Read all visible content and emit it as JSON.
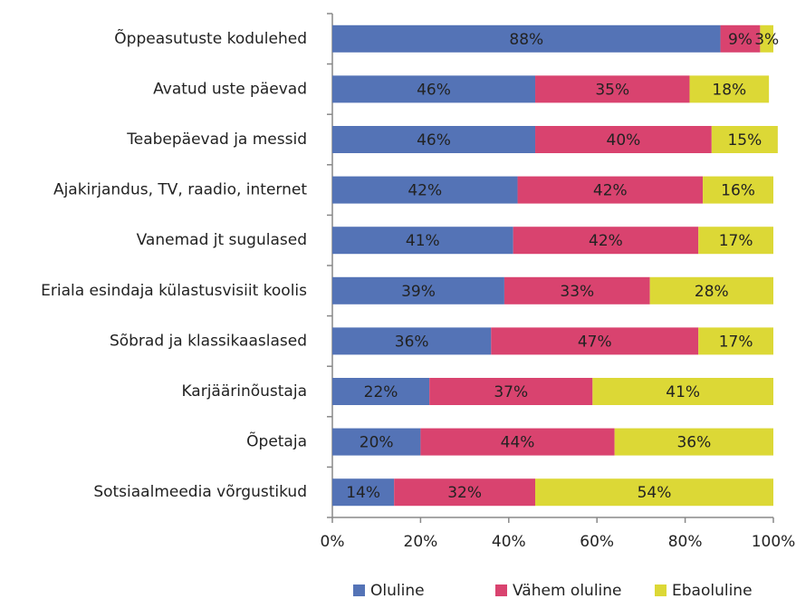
{
  "chart_data": {
    "type": "stacked-barh",
    "categories": [
      "Õppeasutuste kodulehed",
      "Avatud uste päevad",
      "Teabepäevad ja messid",
      "Ajakirjandus, TV, raadio, internet",
      "Vanemad jt sugulased",
      "Eriala esindaja külastusvisiit koolis",
      "Sõbrad ja klassikaaslased",
      "Karjäärinõustaja",
      "Õpetaja",
      "Sotsiaalmeedia võrgustikud"
    ],
    "series": [
      {
        "name": "Oluline",
        "color": "#5473b6",
        "values": [
          88,
          46,
          46,
          42,
          41,
          39,
          36,
          22,
          20,
          14
        ],
        "value_labels": [
          "88%",
          "46%",
          "46%",
          "42%",
          "41%",
          "39%",
          "36%",
          "22%",
          "20%",
          "14%"
        ]
      },
      {
        "name": "Vähem oluline",
        "color": "#d9436f",
        "values": [
          9,
          35,
          40,
          42,
          42,
          33,
          47,
          37,
          44,
          32
        ],
        "value_labels": [
          "9%",
          "35%",
          "40%",
          "42%",
          "42%",
          "33%",
          "47%",
          "37%",
          "44%",
          "32%"
        ]
      },
      {
        "name": "Ebaoluline",
        "color": "#dcd836",
        "values": [
          3,
          18,
          15,
          16,
          17,
          28,
          17,
          41,
          36,
          54
        ],
        "value_labels": [
          "3%",
          "18%",
          "15%",
          "16%",
          "17%",
          "28%",
          "17%",
          "41%",
          "36%",
          "54%"
        ]
      }
    ],
    "xlim": [
      0,
      100
    ],
    "xticks": [
      {
        "value": 0,
        "label": "0%"
      },
      {
        "value": 20,
        "label": "20%"
      },
      {
        "value": 40,
        "label": "40%"
      },
      {
        "value": 60,
        "label": "60%"
      },
      {
        "value": 80,
        "label": "80%"
      },
      {
        "value": 100,
        "label": "100%"
      }
    ],
    "legend": "bottom"
  }
}
